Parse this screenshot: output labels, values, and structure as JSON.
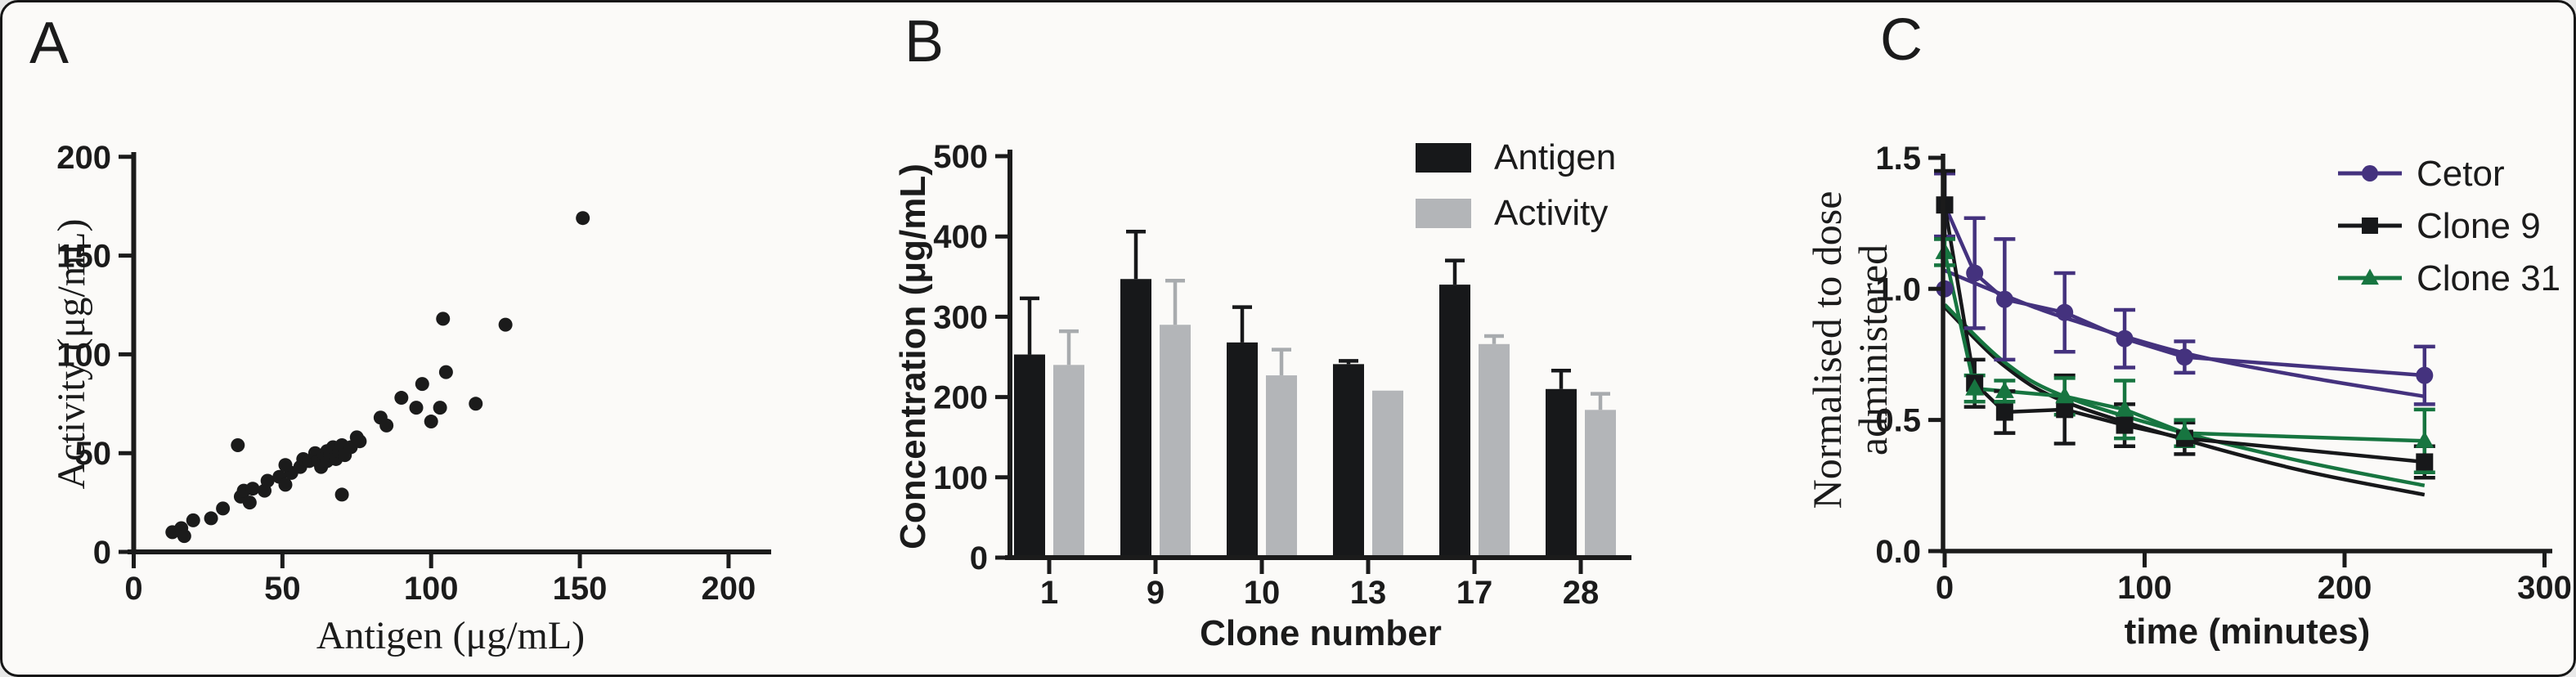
{
  "figure": {
    "background": "#fbfaf8",
    "border_color": "#161616",
    "panels": [
      {
        "letter": "A"
      },
      {
        "letter": "B"
      },
      {
        "letter": "C"
      }
    ]
  },
  "chart_data": [
    {
      "type": "scatter",
      "panel": "A",
      "title": "",
      "xlabel": "Antigen (μg/mL)",
      "ylabel": "Activity (μg/mL)",
      "xlim": [
        0,
        200
      ],
      "ylim": [
        0,
        200
      ],
      "xticks": [
        0,
        50,
        100,
        150,
        200
      ],
      "yticks": [
        0,
        50,
        100,
        150,
        200
      ],
      "xtick_labels": [
        "0",
        "50",
        "100",
        "150",
        "200"
      ],
      "ytick_labels": [
        "0",
        "50",
        "100",
        "150",
        "200"
      ],
      "grid": false,
      "marker_color": "#1b1b1b",
      "points": [
        [
          13,
          10
        ],
        [
          16,
          12
        ],
        [
          17,
          8
        ],
        [
          20,
          16
        ],
        [
          26,
          17
        ],
        [
          30,
          22
        ],
        [
          35,
          54
        ],
        [
          36,
          28
        ],
        [
          37,
          31
        ],
        [
          39,
          25
        ],
        [
          40,
          32
        ],
        [
          44,
          31
        ],
        [
          45,
          36
        ],
        [
          49,
          38
        ],
        [
          51,
          34
        ],
        [
          53,
          40
        ],
        [
          51,
          44
        ],
        [
          56,
          43
        ],
        [
          57,
          47
        ],
        [
          59,
          46
        ],
        [
          61,
          50
        ],
        [
          62,
          46
        ],
        [
          63,
          43
        ],
        [
          64,
          49
        ],
        [
          65,
          51
        ],
        [
          65,
          46
        ],
        [
          66,
          49
        ],
        [
          67,
          53
        ],
        [
          68,
          47
        ],
        [
          69,
          51
        ],
        [
          70,
          54
        ],
        [
          71,
          49
        ],
        [
          73,
          53
        ],
        [
          70,
          29
        ],
        [
          75,
          58
        ],
        [
          76,
          56
        ],
        [
          83,
          68
        ],
        [
          85,
          64
        ],
        [
          90,
          78
        ],
        [
          95,
          73
        ],
        [
          97,
          85
        ],
        [
          100,
          66
        ],
        [
          103,
          73
        ],
        [
          104,
          118
        ],
        [
          105,
          91
        ],
        [
          115,
          75
        ],
        [
          125,
          115
        ],
        [
          151,
          169
        ]
      ]
    },
    {
      "type": "bar",
      "panel": "B",
      "title": "",
      "xlabel": "Clone number",
      "ylabel": "Concentration (μg/mL)",
      "ylim": [
        0,
        500
      ],
      "yticks": [
        0,
        100,
        200,
        300,
        400,
        500
      ],
      "ytick_labels": [
        "0",
        "100",
        "200",
        "300",
        "400",
        "500"
      ],
      "categories": [
        "1",
        "9",
        "10",
        "13",
        "17",
        "28"
      ],
      "grid": false,
      "legend_position": "top-right",
      "series": [
        {
          "name": "Antigen",
          "color": "#17181a",
          "error_color": "#17181a",
          "values": [
            253,
            347,
            268,
            241,
            340,
            210
          ],
          "errors": [
            70,
            59,
            44,
            4,
            30,
            23
          ]
        },
        {
          "name": "Activity",
          "color": "#b3b5b8",
          "error_color": "#a8abae",
          "values": [
            240,
            290,
            227,
            208,
            266,
            184
          ],
          "errors": [
            42,
            55,
            32,
            0,
            10,
            20
          ]
        }
      ]
    },
    {
      "type": "line",
      "panel": "C",
      "title": "",
      "xlabel": "time (minutes)",
      "ylabel_line1": "Normalised to dose",
      "ylabel_line2": "administered",
      "xlim": [
        0,
        300
      ],
      "ylim": [
        0,
        1.5
      ],
      "xticks": [
        0,
        100,
        200,
        300
      ],
      "yticks": [
        0,
        0.5,
        1.0,
        1.5
      ],
      "xtick_labels": [
        "0",
        "100",
        "200",
        "300"
      ],
      "ytick_labels": [
        "0.0",
        "0.5",
        "1.0",
        "1.5"
      ],
      "grid": false,
      "legend_position": "top-right",
      "series": [
        {
          "name": "Cetor",
          "color": "#44327e",
          "marker": "circle",
          "x": [
            0,
            15,
            30,
            60,
            90,
            120,
            240
          ],
          "y": [
            1.32,
            1.06,
            0.96,
            0.91,
            0.81,
            0.74,
            0.67
          ],
          "err": [
            0.12,
            0.21,
            0.23,
            0.15,
            0.11,
            0.06,
            0.11
          ],
          "extra_points": [
            [
              0,
              1.0
            ]
          ],
          "fit_points": [
            [
              0,
              1.07
            ],
            [
              30,
              0.975
            ],
            [
              60,
              0.89
            ],
            [
              120,
              0.755
            ],
            [
              180,
              0.665
            ],
            [
              240,
              0.59
            ]
          ]
        },
        {
          "name": "Clone 9",
          "color": "#17181a",
          "marker": "square",
          "x": [
            0,
            15,
            30,
            60,
            90,
            120,
            240
          ],
          "y": [
            1.32,
            0.64,
            0.53,
            0.54,
            0.48,
            0.43,
            0.34
          ],
          "err": [
            0.13,
            0.09,
            0.08,
            0.13,
            0.08,
            0.06,
            0.06
          ],
          "extra_points": [],
          "fit_points": [
            [
              0,
              0.93
            ],
            [
              30,
              0.705
            ],
            [
              60,
              0.57
            ],
            [
              120,
              0.425
            ],
            [
              180,
              0.305
            ],
            [
              240,
              0.215
            ]
          ]
        },
        {
          "name": "Clone 31",
          "color": "#177540",
          "marker": "triangle",
          "x": [
            0,
            15,
            30,
            60,
            90,
            120,
            240
          ],
          "y": [
            1.14,
            0.62,
            0.61,
            0.59,
            0.54,
            0.45,
            0.42
          ],
          "err": [
            0.05,
            0.05,
            0.04,
            0.07,
            0.11,
            0.05,
            0.12
          ],
          "extra_points": [],
          "fit_points": [
            [
              0,
              0.94
            ],
            [
              30,
              0.72
            ],
            [
              60,
              0.59
            ],
            [
              120,
              0.45
            ],
            [
              180,
              0.34
            ],
            [
              240,
              0.25
            ]
          ]
        }
      ]
    }
  ]
}
